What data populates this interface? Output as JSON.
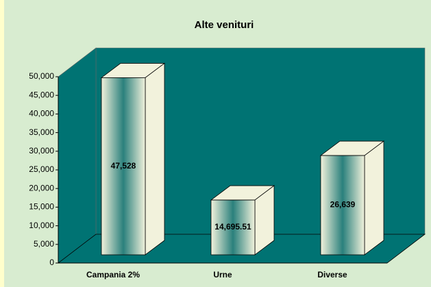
{
  "chart_data": {
    "type": "bar3d",
    "title": "Alte venituri",
    "categories": [
      "Campania 2%",
      "Urne",
      "Diverse"
    ],
    "values": [
      47528,
      14695.51,
      26639
    ],
    "value_labels": [
      "47,528",
      "14,695.51",
      "26,639"
    ],
    "color": "#1f7a76",
    "ylim": [
      0,
      50000
    ],
    "yticks": [
      0,
      {
        "value": 5000,
        "label": "5,000"
      },
      {
        "value": 10000,
        "label": "10,000"
      },
      {
        "value": 15000,
        "label": "15,000"
      },
      {
        "value": 20000,
        "label": "20,000"
      },
      {
        "value": 25000,
        "label": "25,000"
      },
      {
        "value": 30000,
        "label": "30,000"
      },
      {
        "value": 35000,
        "label": "35,000"
      },
      {
        "value": 40000,
        "label": "40,000"
      },
      {
        "value": 45000,
        "label": "45,000"
      },
      {
        "value": 50000,
        "label": "50,000"
      }
    ]
  }
}
